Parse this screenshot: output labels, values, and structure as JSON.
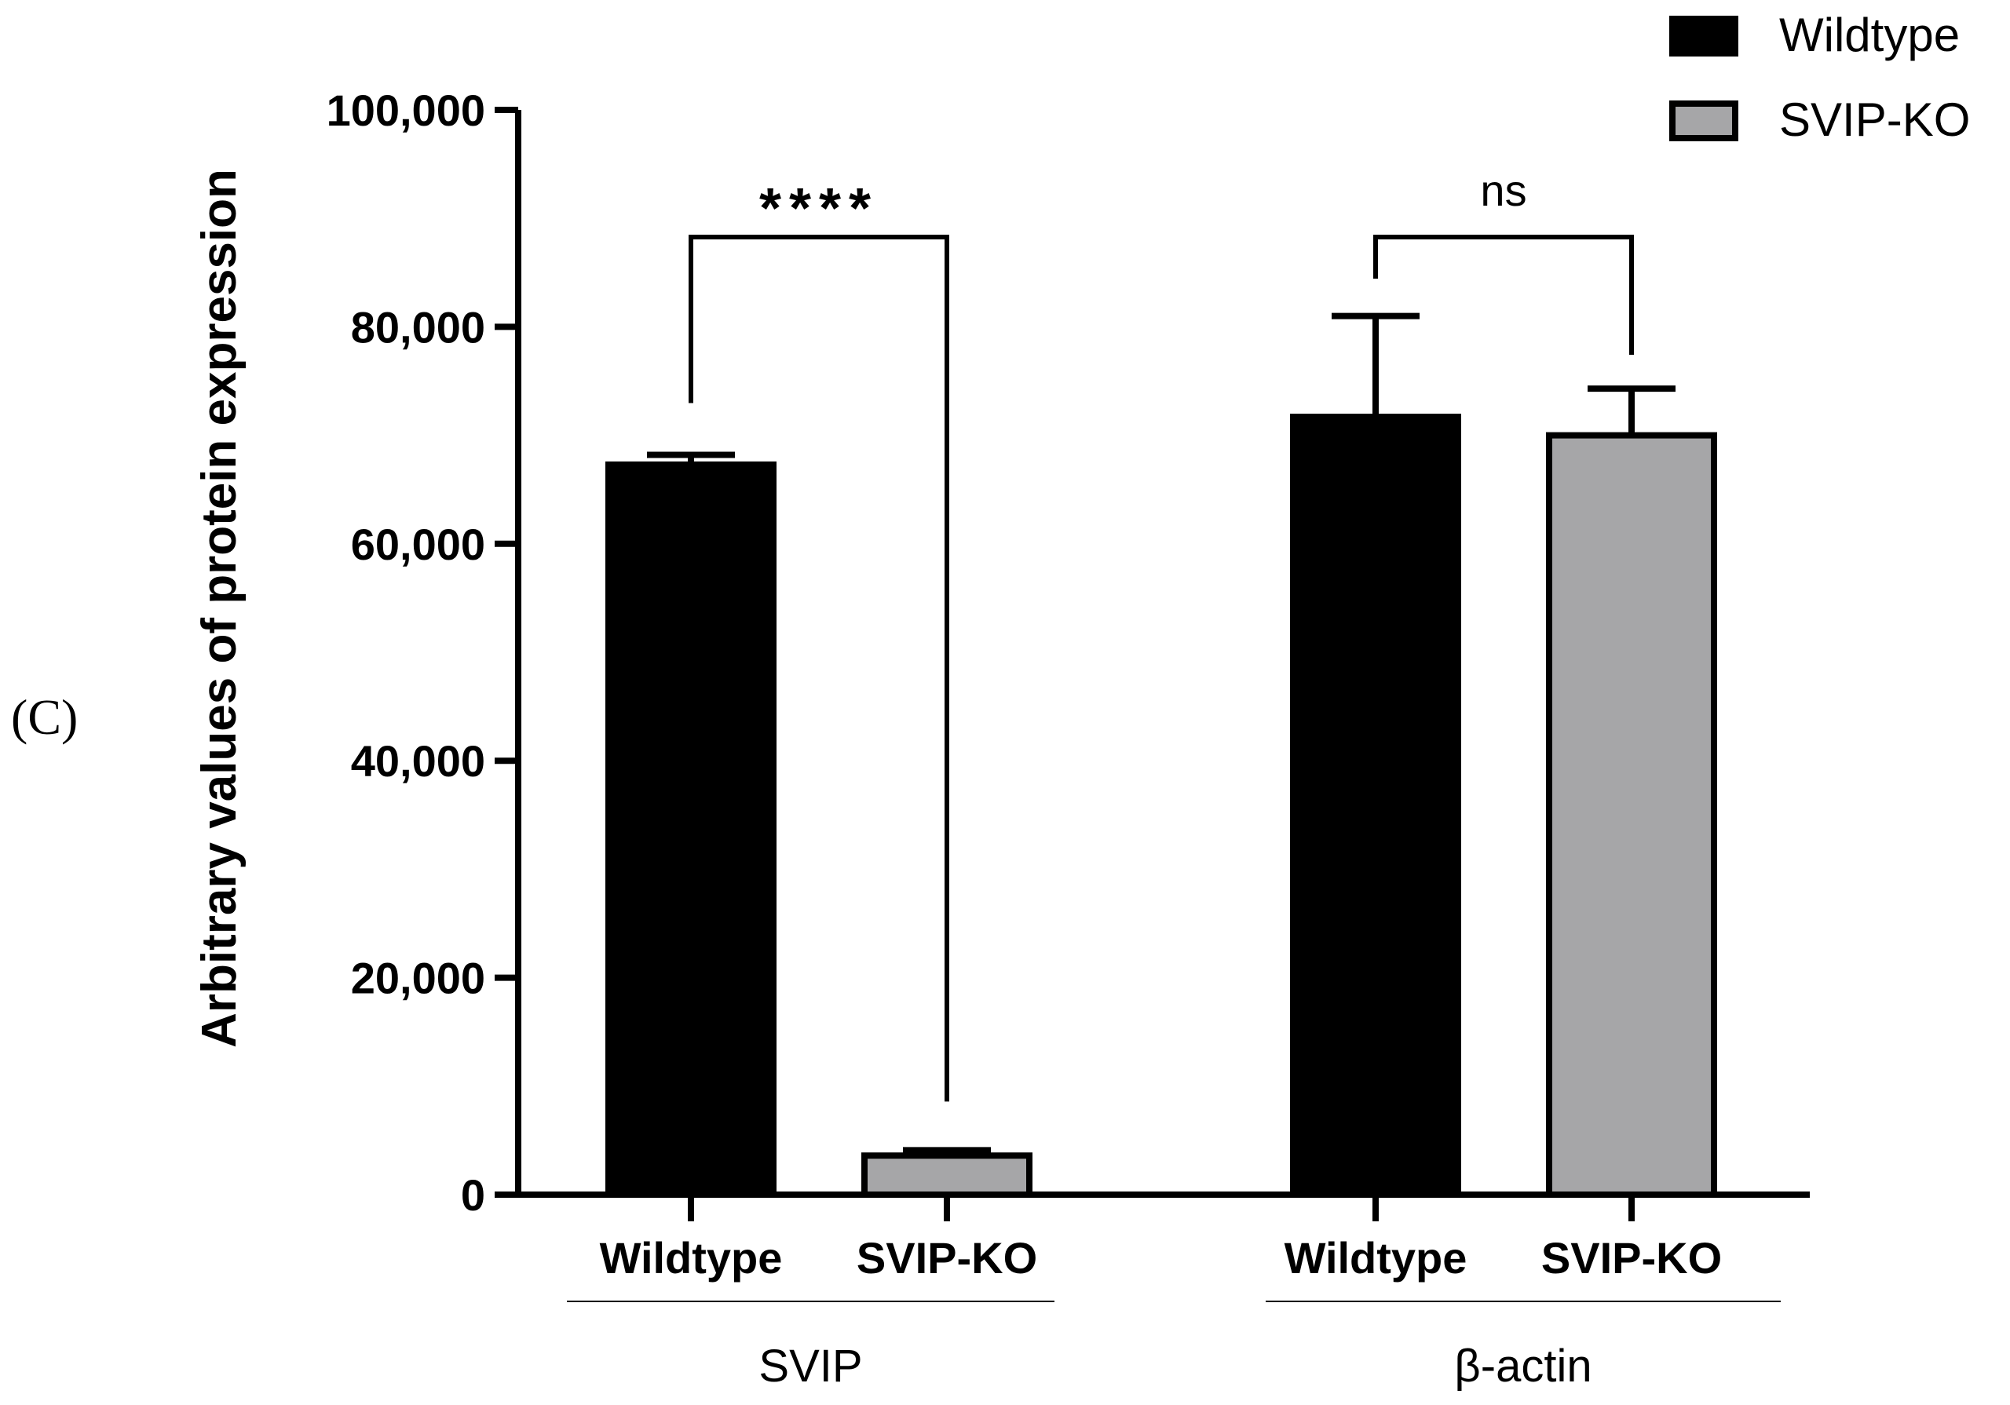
{
  "panel_label": "(C)",
  "chart_data": {
    "type": "bar",
    "title": "",
    "xlabel": "",
    "ylabel": "Arbitrary values of protein expression",
    "ylim": [
      0,
      100000
    ],
    "yticks": [
      0,
      20000,
      40000,
      60000,
      80000,
      100000
    ],
    "ytick_labels": [
      "0",
      "20,000",
      "40,000",
      "60,000",
      "80,000",
      "100,000"
    ],
    "groups": [
      {
        "name": "SVIP",
        "bars": [
          {
            "category": "Wildtype",
            "series": "Wildtype",
            "value": 67300,
            "error": 900
          },
          {
            "category": "SVIP-KO",
            "series": "SVIP-KO",
            "value": 3600,
            "error": 500
          }
        ],
        "significance": "****"
      },
      {
        "name": "β-actin",
        "bars": [
          {
            "category": "Wildtype",
            "series": "Wildtype",
            "value": 71700,
            "error": 9300
          },
          {
            "category": "SVIP-KO",
            "series": "SVIP-KO",
            "value": 70000,
            "error": 4300
          }
        ],
        "significance": "ns"
      }
    ],
    "legend": {
      "position": "top-right",
      "entries": [
        {
          "label": "Wildtype",
          "color": "#000000"
        },
        {
          "label": "SVIP-KO",
          "color": "#a6a6a8"
        }
      ]
    },
    "grid": false
  }
}
